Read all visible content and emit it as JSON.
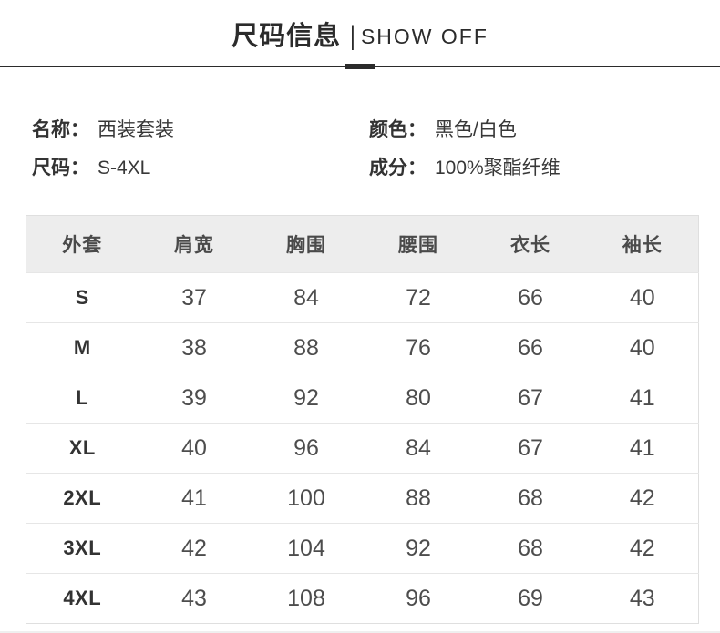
{
  "page": {
    "title_cn": "尺码信息",
    "title_separator": "|",
    "title_en": "SHOW OFF"
  },
  "info": {
    "name_label": "名称：",
    "name_value": "西装套装",
    "size_label": "尺码：",
    "size_value": "S-4XL",
    "color_label": "颜色：",
    "color_value": "黑色/白色",
    "material_label": "成分：",
    "material_value": "100%聚酯纤维"
  },
  "chart_data": {
    "type": "table",
    "title": "尺码信息 | SHOW OFF",
    "columns": [
      "外套",
      "肩宽",
      "胸围",
      "腰围",
      "衣长",
      "袖长"
    ],
    "rows": [
      [
        "S",
        37,
        84,
        72,
        66,
        40
      ],
      [
        "M",
        38,
        88,
        76,
        66,
        40
      ],
      [
        "L",
        39,
        92,
        80,
        67,
        41
      ],
      [
        "XL",
        40,
        96,
        84,
        67,
        41
      ],
      [
        "2XL",
        41,
        100,
        88,
        68,
        42
      ],
      [
        "3XL",
        42,
        104,
        92,
        68,
        42
      ],
      [
        "4XL",
        43,
        108,
        96,
        69,
        43
      ]
    ]
  },
  "colors": {
    "title_text": "#2b2b2b",
    "body_text": "#333333",
    "table_header_bg": "#ededed",
    "table_border": "#e3e3e3",
    "number_text": "#4d4d4d"
  }
}
